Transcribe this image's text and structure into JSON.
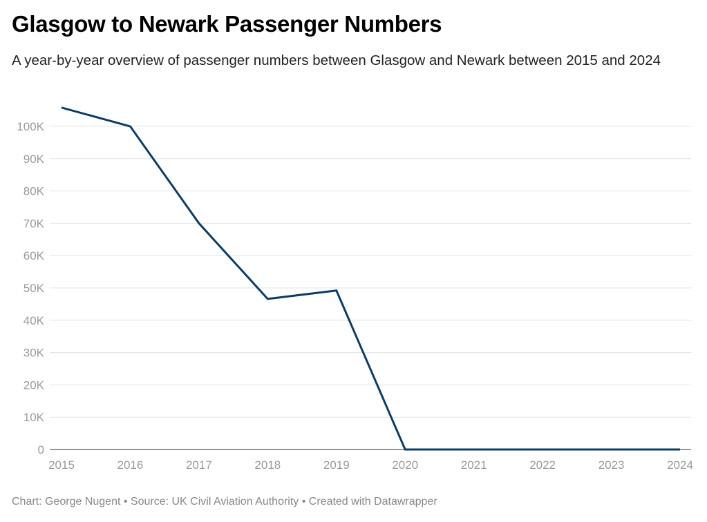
{
  "chart_data": {
    "type": "line",
    "title": "Glasgow to Newark Passenger Numbers",
    "subtitle": "A year-by-year overview of passenger numbers between Glasgow and Newark between 2015 and 2024",
    "xlabel": "",
    "ylabel": "",
    "x": [
      "2015",
      "2016",
      "2017",
      "2018",
      "2019",
      "2020",
      "2021",
      "2022",
      "2023",
      "2024"
    ],
    "series": [
      {
        "values": [
          105800,
          100000,
          70000,
          46600,
          49200,
          0,
          0,
          0,
          0,
          0
        ],
        "color": "#0b3c66"
      }
    ],
    "ylim": [
      0,
      100000
    ],
    "yticks": [
      0,
      10000,
      20000,
      30000,
      40000,
      50000,
      60000,
      70000,
      80000,
      90000,
      100000
    ],
    "ytick_labels": [
      "0",
      "10K",
      "20K",
      "30K",
      "40K",
      "50K",
      "60K",
      "70K",
      "80K",
      "90K",
      "100K"
    ],
    "grid": true
  },
  "footer": "Chart: George Nugent • Source: UK Civil Aviation Authority • Created with Datawrapper"
}
